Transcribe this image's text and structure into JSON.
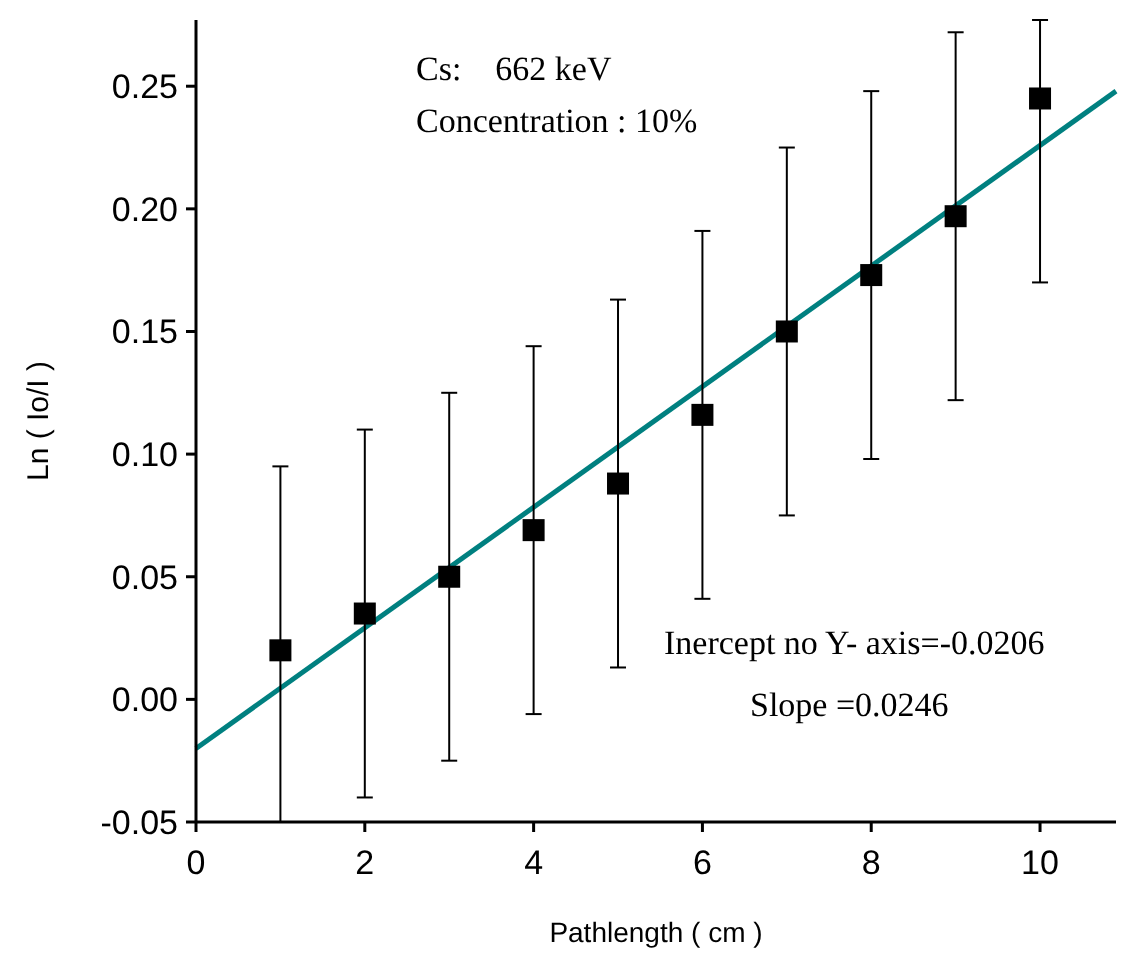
{
  "chart_data": {
    "type": "scatter",
    "xlabel": "Pathlength ( cm )",
    "ylabel": "Ln ( Io/I )",
    "x": [
      1,
      2,
      3,
      4,
      5,
      6,
      7,
      8,
      9,
      10
    ],
    "series": [
      {
        "color": "#000000",
        "marker": "square",
        "values": [
          0.02,
          0.035,
          0.05,
          0.069,
          0.088,
          0.116,
          0.15,
          0.173,
          0.197,
          0.245
        ],
        "errors": [
          [
            -0.05,
            0.095
          ],
          0.075,
          0.075,
          0.075,
          0.075,
          0.075,
          0.075,
          0.075,
          0.075,
          [
            0.17,
            0.277
          ]
        ]
      },
      {
        "type": "line",
        "color": "#008080",
        "x": [
          0,
          10.9
        ],
        "values": [
          -0.02,
          0.248
        ]
      }
    ],
    "xlim": [
      0,
      10.9
    ],
    "ylim": [
      -0.05,
      0.277
    ],
    "xticks": [
      0,
      2,
      4,
      6,
      8,
      10
    ],
    "yticks": [
      {
        "value": -0.05,
        "label": "-0.05"
      },
      {
        "value": 0,
        "label": "0.00"
      },
      {
        "value": 0.05,
        "label": "0.05"
      },
      {
        "value": 0.1,
        "label": "0.10"
      },
      {
        "value": 0.15,
        "label": "0.15"
      },
      {
        "value": 0.2,
        "label": "0.20"
      },
      {
        "value": 0.25,
        "label": "0.25"
      }
    ],
    "annotations": [
      "Cs:    662 keV",
      "Concentration : 10%",
      "Inercept no Y- axis=-0.0206",
      "Slope =0.0246"
    ],
    "grid": false
  }
}
